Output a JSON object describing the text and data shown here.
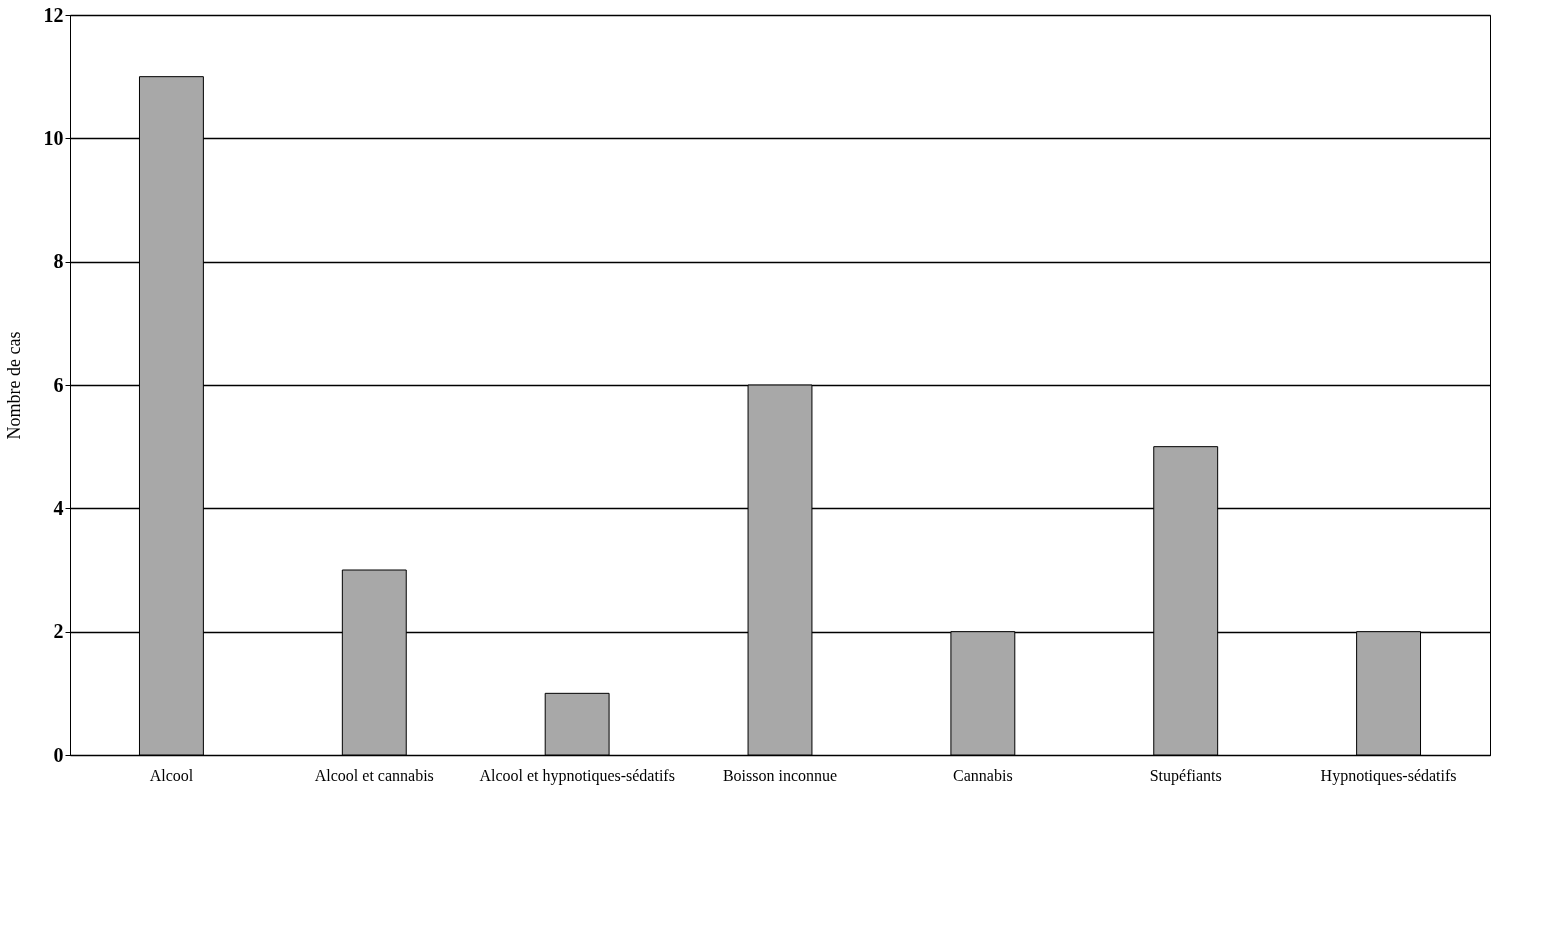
{
  "chart_data": {
    "type": "bar",
    "ylabel": "Nombre de cas",
    "categories": [
      "Alcool",
      "Alcool et cannabis",
      "Alcool et hypnotiques-sédatifs",
      "Boisson inconnue",
      "Cannabis",
      "Stupéfiants",
      "Hypnotiques-sédatifs"
    ],
    "values": [
      11,
      3,
      1,
      6,
      2,
      5,
      2
    ],
    "color": "#a8a8a8",
    "ylim": [
      0,
      12
    ],
    "yticks": [
      0,
      2,
      4,
      6,
      8,
      10,
      12
    ],
    "grid": "y"
  }
}
